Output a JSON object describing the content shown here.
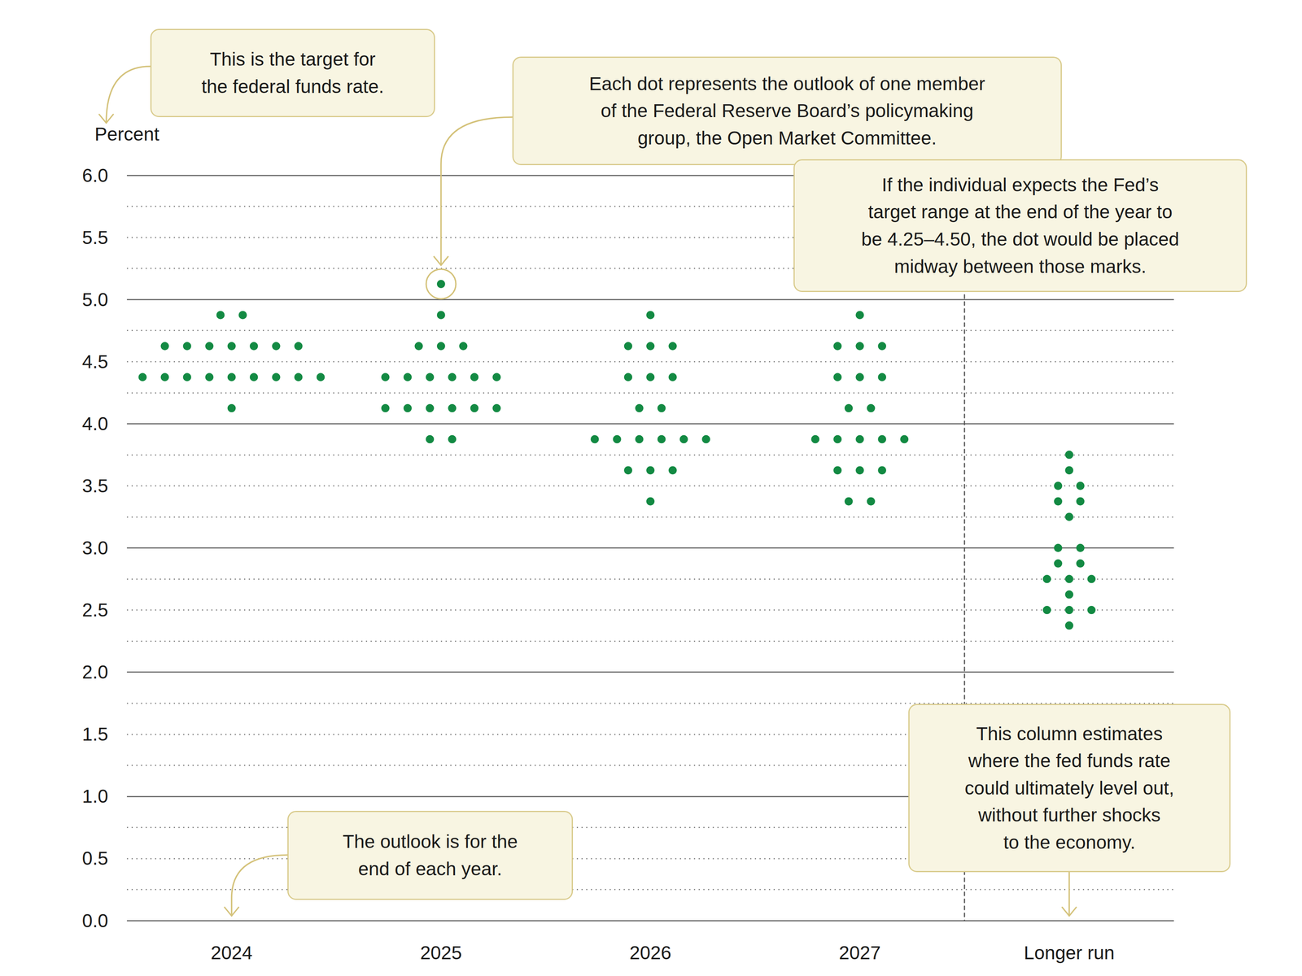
{
  "chart_data": {
    "type": "dot",
    "y_label": "Percent",
    "categories": [
      "2024",
      "2025",
      "2026",
      "2027",
      "Longer run"
    ],
    "values": [
      [
        4.875,
        4.875,
        4.625,
        4.625,
        4.625,
        4.625,
        4.625,
        4.625,
        4.625,
        4.375,
        4.375,
        4.375,
        4.375,
        4.375,
        4.375,
        4.375,
        4.375,
        4.375,
        4.125
      ],
      [
        5.125,
        4.875,
        4.625,
        4.625,
        4.625,
        4.375,
        4.375,
        4.375,
        4.375,
        4.375,
        4.375,
        4.125,
        4.125,
        4.125,
        4.125,
        4.125,
        4.125,
        3.875,
        3.875
      ],
      [
        4.875,
        4.625,
        4.625,
        4.625,
        4.375,
        4.375,
        4.375,
        4.125,
        4.125,
        3.875,
        3.875,
        3.875,
        3.875,
        3.875,
        3.875,
        3.625,
        3.625,
        3.625,
        3.375
      ],
      [
        4.875,
        4.625,
        4.625,
        4.625,
        4.375,
        4.375,
        4.375,
        4.125,
        4.125,
        3.875,
        3.875,
        3.875,
        3.875,
        3.875,
        3.625,
        3.625,
        3.625,
        3.375,
        3.375
      ],
      [
        3.75,
        3.625,
        3.5,
        3.5,
        3.375,
        3.375,
        3.25,
        3.0,
        3.0,
        2.875,
        2.875,
        2.75,
        2.75,
        2.75,
        2.625,
        2.5,
        2.5,
        2.5,
        2.375
      ]
    ],
    "color": "#138a43",
    "ylim": [
      0,
      6
    ],
    "yticks": [
      {
        "value": 0,
        "label": "0.0"
      },
      {
        "value": 0.5,
        "label": "0.5"
      },
      {
        "value": 1,
        "label": "1.0"
      },
      {
        "value": 1.5,
        "label": "1.5"
      },
      {
        "value": 2,
        "label": "2.0"
      },
      {
        "value": 2.5,
        "label": "2.5"
      },
      {
        "value": 3,
        "label": "3.0"
      },
      {
        "value": 3.5,
        "label": "3.5"
      },
      {
        "value": 4,
        "label": "4.0"
      },
      {
        "value": 4.5,
        "label": "4.5"
      },
      {
        "value": 5,
        "label": "5.0"
      },
      {
        "value": 5.5,
        "label": "5.5"
      },
      {
        "value": 6,
        "label": "6.0"
      }
    ],
    "grid": true,
    "annotations": [
      "This is the target for the federal funds rate.",
      "Each dot represents the outlook of one member of the Federal Reserve Board’s policymaking group, the Open Market Committee.",
      "If the individual expects the Fed’s target range at the end of the year to be 4.25–4.50, the dot would be placed midway between those marks.",
      "This column estimates where the fed funds rate could ultimately level out, without further shocks to the economy.",
      "The outlook is for the end of each year."
    ]
  }
}
